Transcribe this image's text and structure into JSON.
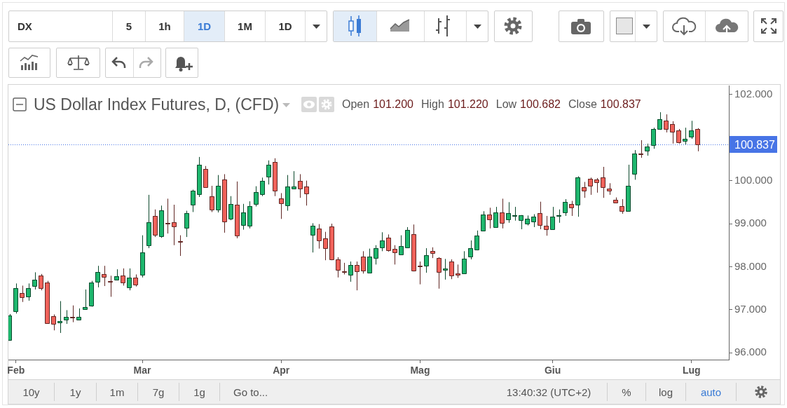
{
  "chart_data": {
    "type": "candlestick",
    "title": "US Dollar Index Futures, D, (CFD)",
    "subtitle": "Open 101.200 High 101.220 Low 100.682 Close 100.837",
    "categories": [
      null,
      "Feb",
      null,
      null,
      null,
      null,
      null,
      null,
      null,
      null,
      null,
      null,
      null,
      null,
      null,
      null,
      null,
      null,
      null,
      null,
      null,
      "Mar",
      null,
      null,
      null,
      null,
      null,
      null,
      null,
      null,
      null,
      null,
      null,
      null,
      null,
      null,
      null,
      null,
      null,
      null,
      null,
      null,
      null,
      "Apr",
      null,
      null,
      null,
      null,
      null,
      null,
      null,
      null,
      null,
      null,
      null,
      null,
      null,
      null,
      null,
      null,
      null,
      null,
      null,
      null,
      null,
      "Mag",
      null,
      null,
      null,
      null,
      null,
      null,
      null,
      null,
      null,
      null,
      null,
      null,
      null,
      null,
      null,
      null,
      null,
      null,
      null,
      null,
      "Giu",
      null,
      null,
      null,
      null,
      null,
      null,
      null,
      null,
      null,
      null,
      null,
      null,
      null,
      null,
      null,
      null,
      null,
      null,
      null,
      null,
      null,
      "Lug",
      null
    ],
    "ohlc": [
      [
        96.3,
        96.9,
        96.28,
        96.87
      ],
      [
        96.96,
        97.61,
        96.91,
        97.5
      ],
      [
        97.39,
        97.56,
        97.18,
        97.3
      ],
      [
        97.3,
        97.61,
        97.21,
        97.5
      ],
      [
        97.55,
        97.87,
        97.47,
        97.7
      ],
      [
        97.8,
        97.83,
        97.45,
        97.5
      ],
      [
        97.63,
        97.67,
        96.68,
        96.69
      ],
      [
        96.85,
        96.89,
        96.52,
        96.67
      ],
      [
        96.7,
        97.2,
        96.46,
        96.73
      ],
      [
        96.77,
        96.99,
        96.67,
        96.84
      ],
      [
        96.83,
        97.1,
        96.71,
        96.81
      ],
      [
        96.77,
        97.03,
        96.76,
        96.83
      ],
      [
        97.02,
        97.47,
        97.01,
        97.07
      ],
      [
        97.09,
        97.67,
        97.07,
        97.63
      ],
      [
        97.65,
        98.02,
        97.52,
        97.87
      ],
      [
        97.82,
        98.02,
        97.55,
        97.75
      ],
      [
        97.66,
        97.79,
        97.3,
        97.65
      ],
      [
        97.7,
        97.94,
        97.68,
        97.78
      ],
      [
        97.8,
        97.96,
        97.56,
        97.63
      ],
      [
        97.52,
        97.96,
        97.45,
        97.75
      ],
      [
        97.75,
        97.82,
        97.54,
        97.58
      ],
      [
        97.82,
        98.73,
        97.75,
        98.34
      ],
      [
        98.5,
        99.67,
        98.43,
        99.03
      ],
      [
        99.18,
        99.33,
        98.69,
        98.74
      ],
      [
        98.7,
        99.42,
        98.67,
        99.31
      ],
      [
        99.02,
        99.58,
        98.77,
        99.01
      ],
      [
        99.04,
        99.44,
        98.5,
        98.94
      ],
      [
        98.6,
        98.73,
        98.25,
        98.59
      ],
      [
        98.89,
        99.3,
        98.69,
        99.24
      ],
      [
        99.44,
        99.79,
        99.27,
        99.76
      ],
      [
        99.69,
        100.55,
        99.62,
        100.37
      ],
      [
        100.27,
        100.34,
        99.84,
        99.85
      ],
      [
        99.64,
        99.88,
        99.27,
        99.33
      ],
      [
        99.33,
        100.13,
        99.26,
        99.88
      ],
      [
        100.03,
        100.15,
        98.79,
        99.06
      ],
      [
        99.11,
        99.64,
        99.08,
        99.46
      ],
      [
        99.44,
        99.98,
        98.66,
        98.72
      ],
      [
        98.96,
        99.46,
        98.86,
        99.26
      ],
      [
        98.96,
        99.52,
        98.89,
        99.41
      ],
      [
        99.45,
        99.87,
        99.4,
        99.73
      ],
      [
        99.69,
        100.07,
        99.64,
        100.0
      ],
      [
        100.09,
        100.47,
        99.91,
        100.37
      ],
      [
        100.44,
        100.52,
        99.64,
        99.77
      ],
      [
        99.58,
        99.71,
        99.11,
        99.46
      ],
      [
        99.43,
        100.13,
        99.3,
        99.87
      ],
      [
        99.82,
        100.22,
        99.81,
        99.87
      ],
      [
        100.0,
        100.15,
        99.6,
        99.82
      ],
      [
        99.86,
        100.0,
        99.42,
        99.69
      ],
      [
        98.74,
        99.01,
        98.33,
        98.95
      ],
      [
        98.88,
        98.99,
        98.42,
        98.6
      ],
      [
        98.66,
        98.81,
        98.15,
        98.44
      ],
      [
        98.93,
        99.0,
        98.15,
        98.16
      ],
      [
        98.17,
        98.22,
        97.75,
        97.92
      ],
      [
        97.89,
        98.09,
        97.82,
        97.88
      ],
      [
        97.82,
        98.12,
        97.65,
        98.04
      ],
      [
        98.04,
        98.12,
        97.45,
        97.89
      ],
      [
        98.24,
        98.36,
        97.84,
        97.92
      ],
      [
        97.86,
        98.42,
        97.85,
        98.24
      ],
      [
        98.21,
        98.5,
        98.05,
        98.43
      ],
      [
        98.44,
        98.8,
        98.36,
        98.61
      ],
      [
        98.68,
        98.75,
        98.35,
        98.38
      ],
      [
        98.42,
        98.5,
        98.05,
        98.34
      ],
      [
        98.28,
        98.73,
        98.27,
        98.48
      ],
      [
        98.44,
        98.92,
        98.43,
        98.85
      ],
      [
        98.75,
        98.98,
        97.89,
        97.91
      ],
      [
        98.02,
        98.12,
        97.59,
        98.0
      ],
      [
        98.01,
        98.43,
        97.86,
        98.26
      ],
      [
        98.36,
        98.45,
        98.2,
        98.31
      ],
      [
        98.21,
        98.22,
        97.49,
        97.89
      ],
      [
        97.92,
        98.18,
        97.7,
        97.95
      ],
      [
        98.12,
        98.17,
        97.71,
        97.79
      ],
      [
        97.85,
        98.05,
        97.74,
        97.81
      ],
      [
        97.84,
        98.36,
        97.83,
        98.19
      ],
      [
        98.23,
        98.61,
        98.17,
        98.43
      ],
      [
        98.41,
        98.84,
        98.38,
        98.73
      ],
      [
        98.84,
        99.29,
        98.83,
        99.22
      ],
      [
        99.22,
        99.37,
        98.89,
        99.11
      ],
      [
        98.92,
        99.39,
        98.91,
        99.26
      ],
      [
        99.26,
        99.58,
        98.89,
        99.01
      ],
      [
        99.1,
        99.5,
        99.02,
        99.24
      ],
      [
        99.18,
        99.39,
        99.07,
        99.19
      ],
      [
        99.07,
        99.2,
        98.87,
        99.19
      ],
      [
        98.99,
        99.19,
        98.96,
        99.11
      ],
      [
        99.06,
        99.22,
        98.92,
        99.17
      ],
      [
        99.24,
        99.51,
        98.87,
        98.96
      ],
      [
        98.95,
        99.18,
        98.72,
        98.87
      ],
      [
        98.87,
        99.39,
        98.86,
        99.17
      ],
      [
        99.18,
        99.33,
        99.02,
        99.19
      ],
      [
        99.26,
        99.57,
        99.18,
        99.51
      ],
      [
        99.46,
        99.53,
        99.18,
        99.38
      ],
      [
        99.43,
        100.1,
        99.16,
        100.07
      ],
      [
        99.85,
        99.97,
        99.6,
        99.77
      ],
      [
        100.05,
        100.07,
        99.67,
        99.89
      ],
      [
        100.02,
        100.06,
        99.72,
        99.95
      ],
      [
        100.07,
        100.32,
        99.6,
        99.85
      ],
      [
        99.81,
        99.94,
        99.67,
        99.76
      ],
      [
        99.56,
        99.61,
        99.48,
        99.49
      ],
      [
        99.4,
        99.57,
        99.23,
        99.29
      ],
      [
        99.29,
        100.37,
        99.28,
        99.88
      ],
      [
        100.16,
        100.71,
        100.02,
        100.63
      ],
      [
        100.63,
        100.94,
        100.53,
        100.62
      ],
      [
        100.7,
        100.86,
        100.58,
        100.8
      ],
      [
        100.82,
        101.23,
        100.74,
        101.2
      ],
      [
        101.19,
        101.59,
        101.18,
        101.42
      ],
      [
        101.39,
        101.54,
        101.12,
        101.19
      ],
      [
        101.32,
        101.38,
        100.86,
        101.14
      ],
      [
        101.17,
        101.2,
        100.86,
        100.89
      ],
      [
        100.92,
        101.23,
        100.84,
        100.97
      ],
      [
        101.02,
        101.39,
        100.97,
        101.17
      ],
      [
        101.2,
        101.22,
        100.682,
        100.837
      ]
    ],
    "colors": [
      "#1eb76e",
      "#1eb76e",
      "#f0625a",
      "#1eb76e",
      "#1eb76e",
      "#f0625a",
      "#f0625a",
      "#f0625a",
      "#1eb76e",
      "#1eb76e",
      "#f0625a",
      "#1eb76e",
      "#1eb76e",
      "#1eb76e",
      "#1eb76e",
      "#f0625a",
      "#f0625a",
      "#1eb76e",
      "#f0625a",
      "#1eb76e",
      "#f0625a",
      "#1eb76e",
      "#1eb76e",
      "#f0625a",
      "#1eb76e",
      "#f0625a",
      "#f0625a",
      "#f0625a",
      "#1eb76e",
      "#1eb76e",
      "#1eb76e",
      "#f0625a",
      "#f0625a",
      "#1eb76e",
      "#f0625a",
      "#1eb76e",
      "#f0625a",
      "#1eb76e",
      "#1eb76e",
      "#1eb76e",
      "#1eb76e",
      "#1eb76e",
      "#f0625a",
      "#f0625a",
      "#1eb76e",
      "#1eb76e",
      "#f0625a",
      "#f0625a",
      "#1eb76e",
      "#f0625a",
      "#f0625a",
      "#f0625a",
      "#f0625a",
      "#f0625a",
      "#1eb76e",
      "#f0625a",
      "#f0625a",
      "#1eb76e",
      "#1eb76e",
      "#1eb76e",
      "#f0625a",
      "#f0625a",
      "#1eb76e",
      "#1eb76e",
      "#f0625a",
      "#f0625a",
      "#1eb76e",
      "#f0625a",
      "#f0625a",
      "#1eb76e",
      "#f0625a",
      "#f0625a",
      "#1eb76e",
      "#1eb76e",
      "#1eb76e",
      "#1eb76e",
      "#f0625a",
      "#1eb76e",
      "#f0625a",
      "#1eb76e",
      "#1eb76e",
      "#1eb76e",
      "#1eb76e",
      "#1eb76e",
      "#f0625a",
      "#f0625a",
      "#1eb76e",
      "#1eb76e",
      "#1eb76e",
      "#f0625a",
      "#1eb76e",
      "#f0625a",
      "#f0625a",
      "#f0625a",
      "#f0625a",
      "#f0625a",
      "#f0625a",
      "#f0625a",
      "#1eb76e",
      "#1eb76e",
      "#f0625a",
      "#1eb76e",
      "#1eb76e",
      "#1eb76e",
      "#f0625a",
      "#f0625a",
      "#f0625a",
      "#1eb76e",
      "#1eb76e",
      "#f0625a"
    ],
    "ylim": [
      95.84,
      102.21
    ],
    "yticks": [
      {
        "value": 96,
        "label": "96.000"
      },
      {
        "value": 97,
        "label": "97.000"
      },
      {
        "value": 98,
        "label": "98.000"
      },
      {
        "value": 99,
        "label": "99.000"
      },
      {
        "value": 100,
        "label": "100.000"
      },
      {
        "value": 102,
        "label": "102.000"
      }
    ],
    "ref_lines": [
      {
        "axis": "y",
        "value": 100.837,
        "label": "100.837",
        "color": "#4774e6",
        "line_style": "dotted"
      }
    ],
    "annotations": [
      "DX",
      "5",
      "1h",
      "1D",
      "1M",
      "1D",
      "10y",
      "1y",
      "1m",
      "7g",
      "1g",
      "Go to...",
      "13:40:32 (UTC+2)",
      "%",
      "log",
      "auto"
    ]
  }
}
